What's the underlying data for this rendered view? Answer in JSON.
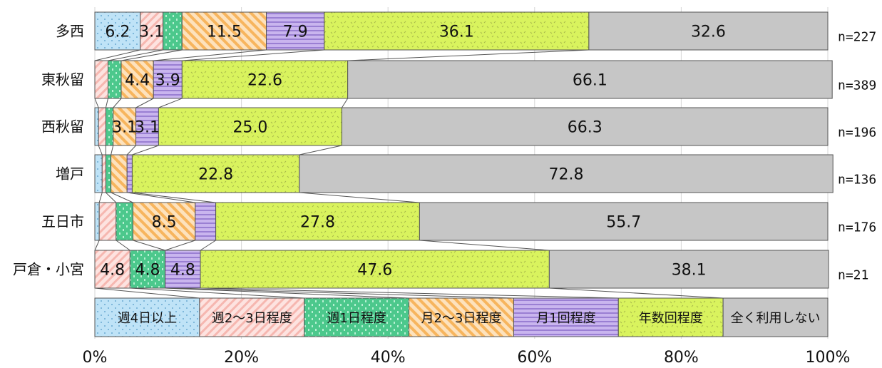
{
  "chart_data": {
    "type": "bar",
    "stacked": true,
    "orientation": "horizontal",
    "percent_axis": true,
    "xlim": [
      0,
      100
    ],
    "x_ticks": [
      "0%",
      "20%",
      "40%",
      "60%",
      "80%",
      "100%"
    ],
    "grid": true,
    "legend_position": "bottom-inside",
    "categories": [
      "多西",
      "東秋留",
      "西秋留",
      "増戸",
      "五日市",
      "戸倉・小宮"
    ],
    "n_labels": [
      "n=227",
      "n=389",
      "n=196",
      "n=136",
      "n=176",
      "n=21"
    ],
    "series": [
      {
        "name": "週4日以上",
        "values": [
          6.2,
          0.0,
          0.5,
          1.0,
          0.6,
          0.0
        ],
        "color": "#bfe3f7"
      },
      {
        "name": "週2～3日程度",
        "values": [
          3.1,
          1.8,
          1.0,
          0.5,
          2.3,
          4.8
        ],
        "color": "#fdd7d4"
      },
      {
        "name": "週1日程度",
        "values": [
          2.6,
          1.8,
          1.0,
          0.7,
          2.3,
          4.8
        ],
        "color": "#5ed39a"
      },
      {
        "name": "月2～3日程度",
        "values": [
          11.5,
          4.4,
          3.1,
          2.2,
          8.5,
          0.0
        ],
        "color": "#fcc98a"
      },
      {
        "name": "月1回程度",
        "values": [
          7.9,
          3.9,
          3.1,
          0.7,
          2.8,
          4.8
        ],
        "color": "#bca4e6"
      },
      {
        "name": "年数回程度",
        "values": [
          36.1,
          22.6,
          25.0,
          22.8,
          27.8,
          47.6
        ],
        "color": "#d7f25a"
      },
      {
        "name": "全く利用しない",
        "values": [
          32.6,
          66.1,
          66.3,
          72.8,
          55.7,
          38.1
        ],
        "color": "#c6c6c6"
      }
    ],
    "data_labels": [
      [
        "6.2",
        "3.1",
        "",
        "11.5",
        "7.9",
        "36.1",
        "32.6"
      ],
      [
        "",
        "",
        "",
        "4.4",
        "3.9",
        "22.6",
        "66.1"
      ],
      [
        "",
        "",
        "",
        "3.1",
        "3.1",
        "25.0",
        "66.3"
      ],
      [
        "",
        "",
        "",
        "",
        "",
        "22.8",
        "72.8"
      ],
      [
        "",
        "",
        "",
        "8.5",
        "",
        "27.8",
        "55.7"
      ],
      [
        "",
        "4.8",
        "4.8",
        "",
        "4.8",
        "47.6",
        "38.1"
      ]
    ]
  }
}
